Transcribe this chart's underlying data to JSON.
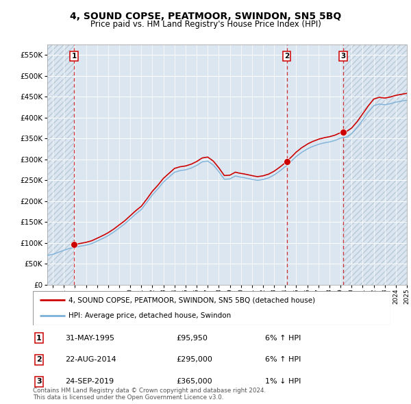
{
  "title": "4, SOUND COPSE, PEATMOOR, SWINDON, SN5 5BQ",
  "subtitle": "Price paid vs. HM Land Registry's House Price Index (HPI)",
  "legend_line1": "4, SOUND COPSE, PEATMOOR, SWINDON, SN5 5BQ (detached house)",
  "legend_line2": "HPI: Average price, detached house, Swindon",
  "footnote": "Contains HM Land Registry data © Crown copyright and database right 2024.\nThis data is licensed under the Open Government Licence v3.0.",
  "transactions": [
    {
      "num": 1,
      "date": "31-MAY-1995",
      "price": 95950,
      "hpi_pct": "6%",
      "hpi_dir": "↑"
    },
    {
      "num": 2,
      "date": "22-AUG-2014",
      "price": 295000,
      "hpi_pct": "6%",
      "hpi_dir": "↑"
    },
    {
      "num": 3,
      "date": "24-SEP-2019",
      "price": 365000,
      "hpi_pct": "1%",
      "hpi_dir": "↓"
    }
  ],
  "sale_years": [
    1995.42,
    2014.64,
    2019.73
  ],
  "sale_prices": [
    95950,
    295000,
    365000
  ],
  "ylim": [
    0,
    575000
  ],
  "yticks": [
    0,
    50000,
    100000,
    150000,
    200000,
    250000,
    300000,
    350000,
    400000,
    450000,
    500000,
    550000
  ],
  "ytick_labels": [
    "£0",
    "£50K",
    "£100K",
    "£150K",
    "£200K",
    "£250K",
    "£300K",
    "£350K",
    "£400K",
    "£450K",
    "£500K",
    "£550K"
  ],
  "xlim_start": 1993.0,
  "xlim_end": 2025.5,
  "hpi_color": "#7ab0d8",
  "price_color": "#cc0000",
  "bg_color": "#dce6f1",
  "grid_color": "#c8d8e8",
  "vline_color": "#cc0000",
  "marker_color": "#cc0000",
  "hpi_key_points": [
    [
      1993.0,
      70000
    ],
    [
      1993.5,
      72000
    ],
    [
      1994.0,
      77000
    ],
    [
      1994.5,
      83000
    ],
    [
      1995.0,
      88000
    ],
    [
      1995.5,
      91000
    ],
    [
      1996.0,
      94000
    ],
    [
      1996.5,
      97000
    ],
    [
      1997.0,
      101000
    ],
    [
      1997.5,
      107000
    ],
    [
      1998.0,
      113000
    ],
    [
      1998.5,
      120000
    ],
    [
      1999.0,
      128000
    ],
    [
      1999.5,
      138000
    ],
    [
      2000.0,
      148000
    ],
    [
      2000.5,
      160000
    ],
    [
      2001.0,
      172000
    ],
    [
      2001.5,
      183000
    ],
    [
      2002.0,
      200000
    ],
    [
      2002.5,
      218000
    ],
    [
      2003.0,
      232000
    ],
    [
      2003.5,
      248000
    ],
    [
      2004.0,
      260000
    ],
    [
      2004.5,
      272000
    ],
    [
      2005.0,
      276000
    ],
    [
      2005.5,
      278000
    ],
    [
      2006.0,
      282000
    ],
    [
      2006.5,
      288000
    ],
    [
      2007.0,
      296000
    ],
    [
      2007.5,
      298000
    ],
    [
      2008.0,
      288000
    ],
    [
      2008.5,
      272000
    ],
    [
      2009.0,
      254000
    ],
    [
      2009.5,
      255000
    ],
    [
      2010.0,
      262000
    ],
    [
      2010.5,
      258000
    ],
    [
      2011.0,
      255000
    ],
    [
      2011.5,
      252000
    ],
    [
      2012.0,
      250000
    ],
    [
      2012.5,
      252000
    ],
    [
      2013.0,
      256000
    ],
    [
      2013.5,
      263000
    ],
    [
      2014.0,
      272000
    ],
    [
      2014.5,
      282000
    ],
    [
      2015.0,
      295000
    ],
    [
      2015.5,
      308000
    ],
    [
      2016.0,
      318000
    ],
    [
      2016.5,
      326000
    ],
    [
      2017.0,
      332000
    ],
    [
      2017.5,
      337000
    ],
    [
      2018.0,
      340000
    ],
    [
      2018.5,
      342000
    ],
    [
      2019.0,
      345000
    ],
    [
      2019.5,
      350000
    ],
    [
      2020.0,
      352000
    ],
    [
      2020.5,
      360000
    ],
    [
      2021.0,
      375000
    ],
    [
      2021.5,
      393000
    ],
    [
      2022.0,
      412000
    ],
    [
      2022.5,
      428000
    ],
    [
      2023.0,
      432000
    ],
    [
      2023.5,
      430000
    ],
    [
      2024.0,
      432000
    ],
    [
      2024.5,
      435000
    ],
    [
      2025.0,
      438000
    ],
    [
      2025.5,
      440000
    ]
  ]
}
